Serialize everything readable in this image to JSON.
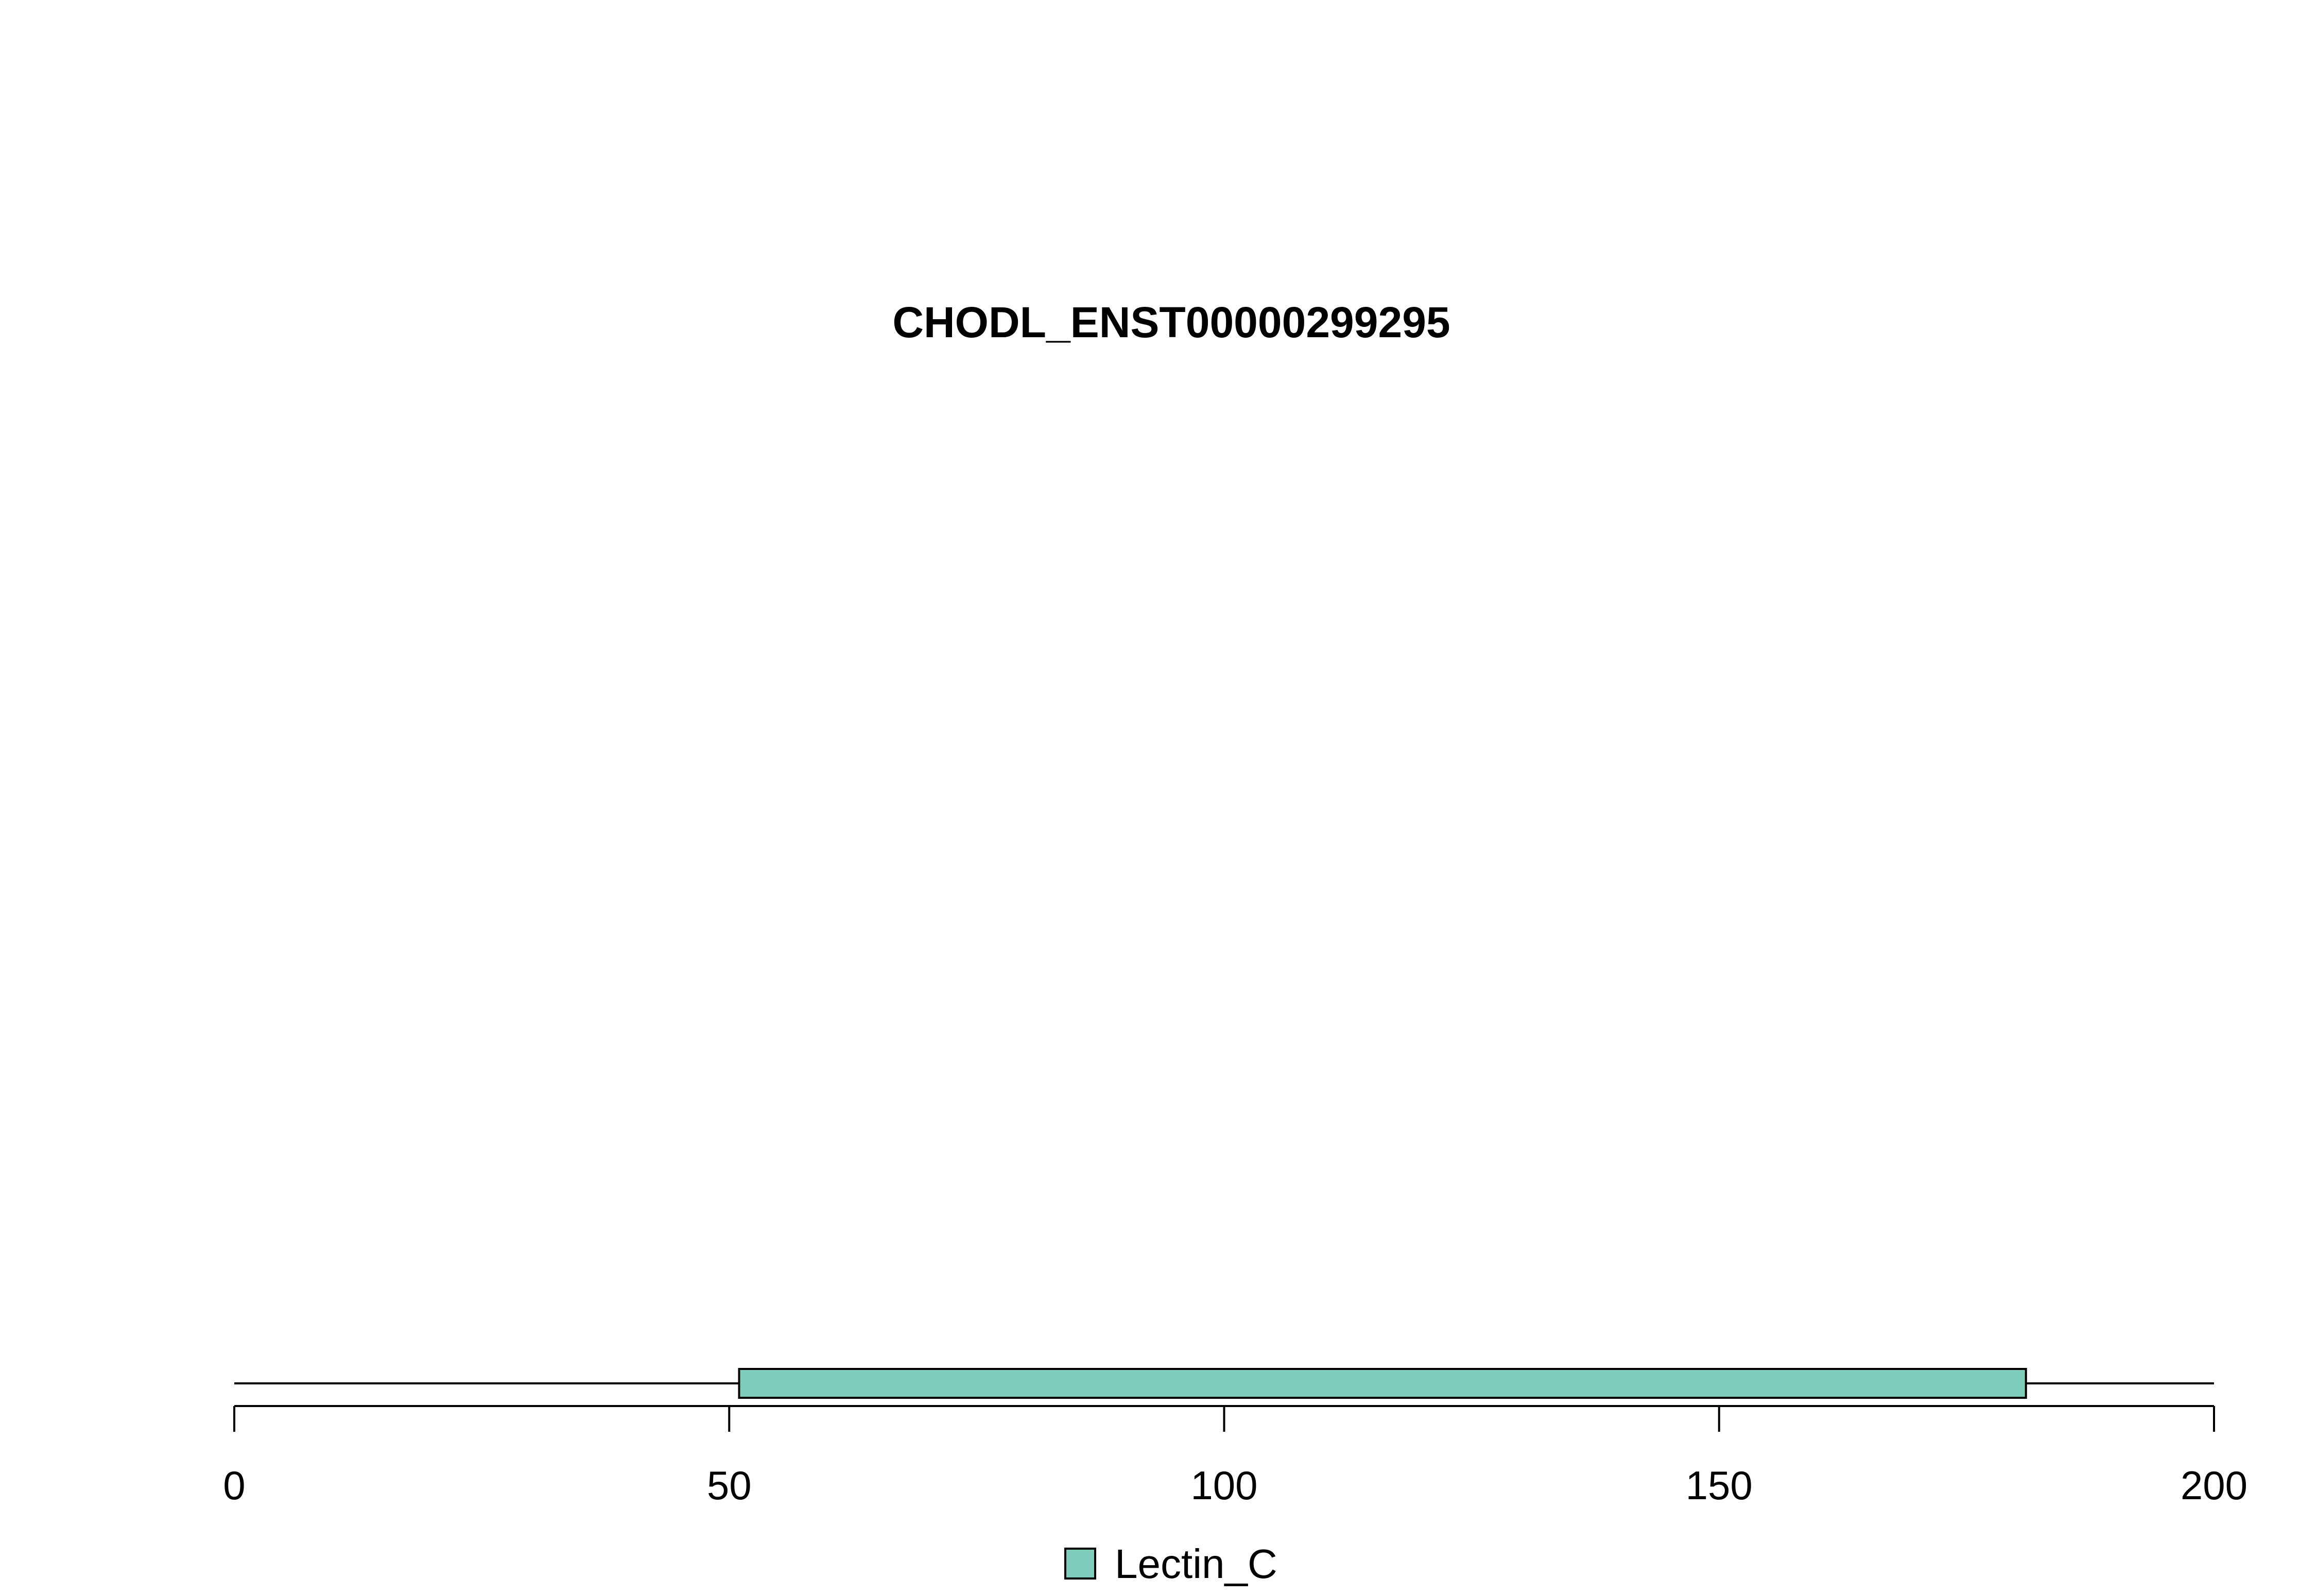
{
  "chart_data": {
    "type": "bar",
    "title": "CHODL_ENST00000299295",
    "xlabel": "",
    "ylabel": "",
    "xlim": [
      0,
      200
    ],
    "protein_length": 200,
    "x_ticks": [
      0,
      50,
      100,
      150,
      200
    ],
    "grid": false,
    "legend_position": "bottom-center",
    "domains": [
      {
        "name": "Lectin_C",
        "start": 51,
        "end": 181,
        "color": "#7fcdbb"
      }
    ]
  }
}
